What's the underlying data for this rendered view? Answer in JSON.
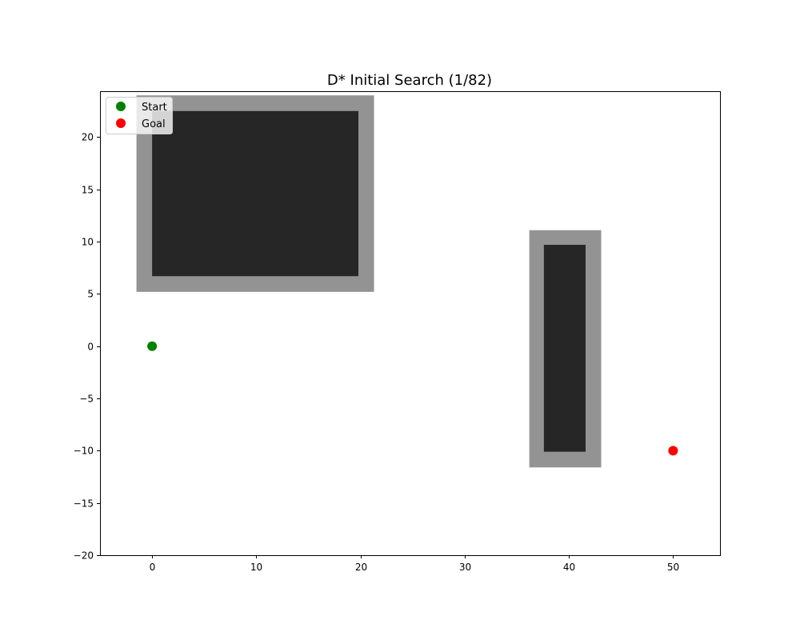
{
  "chart_data": {
    "type": "scatter",
    "title": "D* Initial Search (1/82)",
    "xlabel": "",
    "ylabel": "",
    "xlim": [
      -5,
      54.5
    ],
    "ylim": [
      -20,
      24.4
    ],
    "grid": false,
    "legend_placement": "upper-left",
    "x_ticks": [
      0,
      10,
      20,
      30,
      40,
      50
    ],
    "y_ticks": [
      -20,
      -15,
      -10,
      -5,
      0,
      5,
      10,
      15,
      20
    ],
    "x_tick_labels": [
      "0",
      "10",
      "20",
      "30",
      "40",
      "50"
    ],
    "y_tick_labels": [
      "−20",
      "−15",
      "−10",
      "−5",
      "0",
      "5",
      "10",
      "15",
      "20"
    ],
    "obstacles": [
      {
        "inflated": {
          "x": [
            -1.5,
            21.3
          ],
          "y": [
            5.2,
            24.0
          ]
        },
        "core": {
          "x": [
            0,
            19.8
          ],
          "y": [
            6.7,
            22.5
          ]
        }
      },
      {
        "inflated": {
          "x": [
            36.2,
            43.1
          ],
          "y": [
            -11.6,
            11.1
          ]
        },
        "core": {
          "x": [
            37.6,
            41.6
          ],
          "y": [
            -10.1,
            9.7
          ]
        }
      }
    ],
    "colors": {
      "inflated": "#939393",
      "core": "#262626"
    },
    "series": [
      {
        "name": "Start",
        "x": [
          0
        ],
        "y": [
          0
        ],
        "color": "#008000"
      },
      {
        "name": "Goal",
        "x": [
          50
        ],
        "y": [
          -10
        ],
        "color": "#ff0000"
      }
    ]
  }
}
